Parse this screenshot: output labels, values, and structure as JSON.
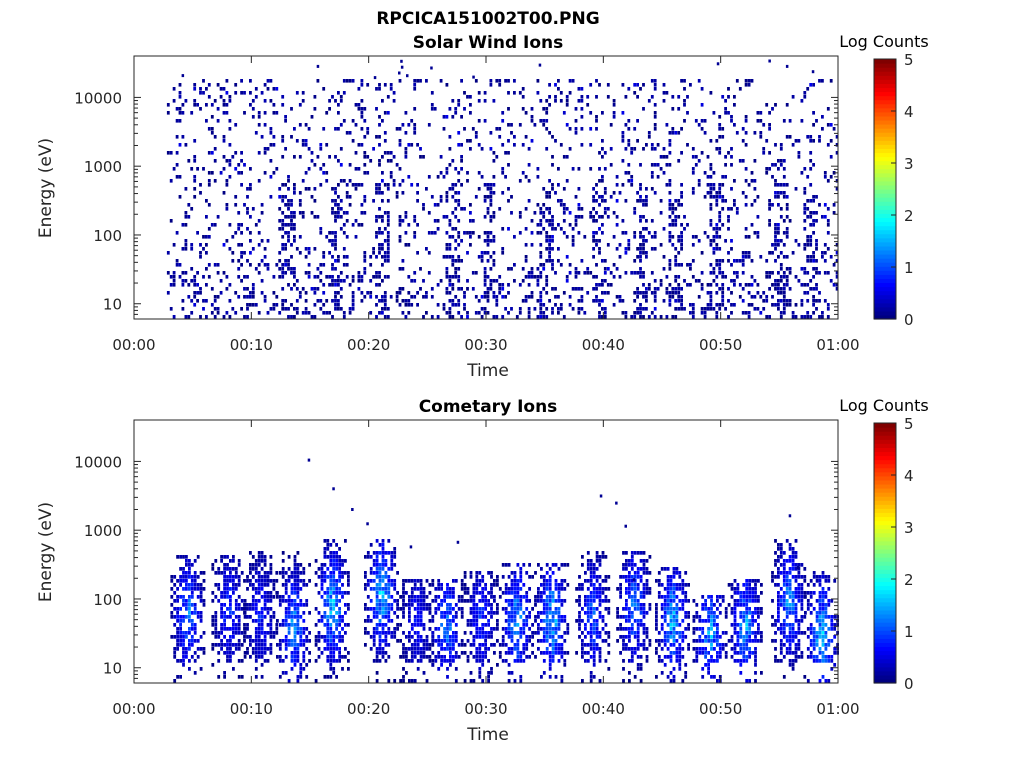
{
  "figure_title": "RPCICA151002T00.PNG",
  "chart_data": [
    {
      "type": "heatmap",
      "title": "Solar Wind Ions",
      "xlabel": "Time",
      "ylabel": "Energy (eV)",
      "x_ticks": [
        "00:00",
        "00:10",
        "00:20",
        "00:30",
        "00:40",
        "00:50",
        "01:00"
      ],
      "xlim_minutes": [
        0,
        60
      ],
      "y_ticks": [
        "10",
        "100",
        "1000",
        "10000"
      ],
      "ylim_eV": [
        6,
        40000
      ],
      "y_scale": "log",
      "colorbar": {
        "label": "Log Counts",
        "ticks": [
          "0",
          "1",
          "2",
          "3",
          "4",
          "5"
        ],
        "range": [
          0,
          5
        ],
        "colormap": "jet"
      },
      "data_start_minute": 2.8,
      "description_level": "sparse scattered low counts (log counts ~0-0.3) across 10 eV – 20 keV, denser vertical streaks near 13, 17, 27, 30, 39, 46, 49, 55, 57 minutes"
    },
    {
      "type": "heatmap",
      "title": "Cometary Ions",
      "xlabel": "Time",
      "ylabel": "Energy (eV)",
      "x_ticks": [
        "00:00",
        "00:10",
        "00:20",
        "00:30",
        "00:40",
        "00:50",
        "01:00"
      ],
      "xlim_minutes": [
        0,
        60
      ],
      "y_ticks": [
        "10",
        "100",
        "1000",
        "10000"
      ],
      "ylim_eV": [
        6,
        40000
      ],
      "y_scale": "log",
      "colorbar": {
        "label": "Log Counts",
        "ticks": [
          "0",
          "1",
          "2",
          "3",
          "4",
          "5"
        ],
        "range": [
          0,
          5
        ],
        "colormap": "jet"
      },
      "bursts": [
        {
          "minute": 4.5,
          "peak_eV": 60,
          "max_eV": 450,
          "peak_log": 1.4
        },
        {
          "minute": 8.0,
          "peak_eV": 70,
          "max_eV": 450,
          "peak_log": 1.0
        },
        {
          "minute": 10.7,
          "peak_eV": 60,
          "max_eV": 500,
          "peak_log": 0.9
        },
        {
          "minute": 13.5,
          "peak_eV": 40,
          "max_eV": 500,
          "peak_log": 1.5
        },
        {
          "minute": 16.8,
          "peak_eV": 80,
          "max_eV": 800,
          "peak_log": 1.8
        },
        {
          "minute": 21.0,
          "peak_eV": 120,
          "max_eV": 800,
          "peak_log": 1.8
        },
        {
          "minute": 24.0,
          "peak_eV": 50,
          "max_eV": 200,
          "peak_log": 0.8
        },
        {
          "minute": 26.5,
          "peak_eV": 40,
          "max_eV": 200,
          "peak_log": 1.4
        },
        {
          "minute": 29.5,
          "peak_eV": 50,
          "max_eV": 250,
          "peak_log": 1.0
        },
        {
          "minute": 32.5,
          "peak_eV": 50,
          "max_eV": 350,
          "peak_log": 1.6
        },
        {
          "minute": 35.5,
          "peak_eV": 50,
          "max_eV": 350,
          "peak_log": 1.8
        },
        {
          "minute": 39.0,
          "peak_eV": 60,
          "max_eV": 500,
          "peak_log": 1.2
        },
        {
          "minute": 42.5,
          "peak_eV": 80,
          "max_eV": 500,
          "peak_log": 1.4
        },
        {
          "minute": 45.8,
          "peak_eV": 50,
          "max_eV": 300,
          "peak_log": 1.7
        },
        {
          "minute": 49.0,
          "peak_eV": 30,
          "max_eV": 120,
          "peak_log": 1.6
        },
        {
          "minute": 52.0,
          "peak_eV": 40,
          "max_eV": 200,
          "peak_log": 1.6
        },
        {
          "minute": 55.7,
          "peak_eV": 90,
          "max_eV": 800,
          "peak_log": 1.5
        },
        {
          "minute": 58.5,
          "peak_eV": 30,
          "max_eV": 250,
          "peak_log": 1.8
        }
      ]
    }
  ]
}
